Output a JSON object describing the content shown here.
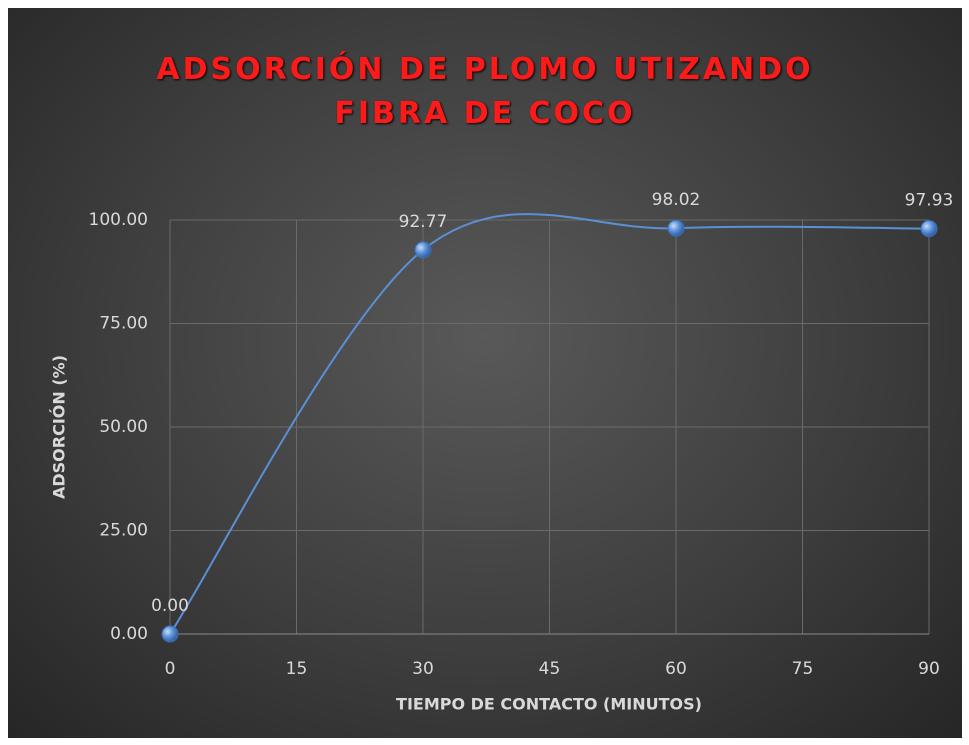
{
  "chart_data": {
    "type": "line",
    "title": "ADSORCIÓN DE PLOMO UTIZANDO FIBRA DE COCO",
    "x_label": "TIEMPO DE CONTACTO (MINUTOS)",
    "y_label": "ADSORCIÓN (%)",
    "x": [
      0,
      30,
      60,
      90
    ],
    "values": [
      0,
      92.77,
      98.02,
      97.93
    ],
    "value_labels": [
      "0.00",
      "92.77",
      "98.02",
      "97.93"
    ],
    "color": "#5b8fd6",
    "smooth": true,
    "xlim": [
      0,
      90
    ],
    "xticks": [
      0,
      15,
      30,
      45,
      60,
      75,
      90
    ],
    "ylim": [
      0,
      100
    ],
    "yticks": [
      {
        "value": 0,
        "label": "0.00"
      },
      {
        "value": 25,
        "label": "25.00"
      },
      {
        "value": 50,
        "label": "50.00"
      },
      {
        "value": 75,
        "label": "75.00"
      },
      {
        "value": 100,
        "label": "100.00"
      }
    ],
    "grid": true
  }
}
